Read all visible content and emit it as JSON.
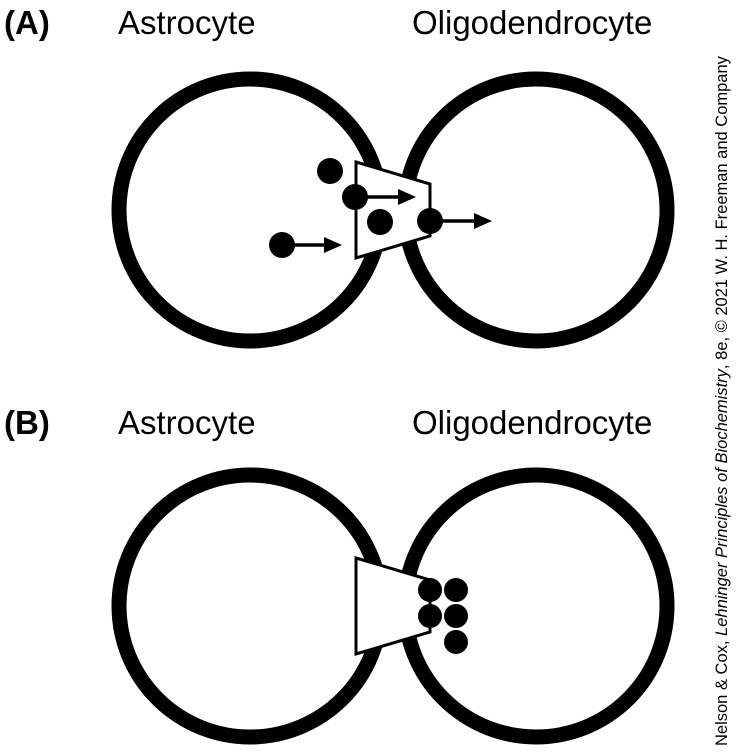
{
  "panels": [
    {
      "letter": "(A)",
      "left_cell": "Astrocyte",
      "right_cell": "Oligodendrocyte"
    },
    {
      "letter": "(B)",
      "left_cell": "Astrocyte",
      "right_cell": "Oligodendrocyte"
    }
  ],
  "credit": {
    "prefix": "Nelson & Cox, ",
    "book_title": "Lehninger Principles of Biochemistry",
    "suffix": ", 8e, © 2021 W. H. Freeman and Company"
  }
}
